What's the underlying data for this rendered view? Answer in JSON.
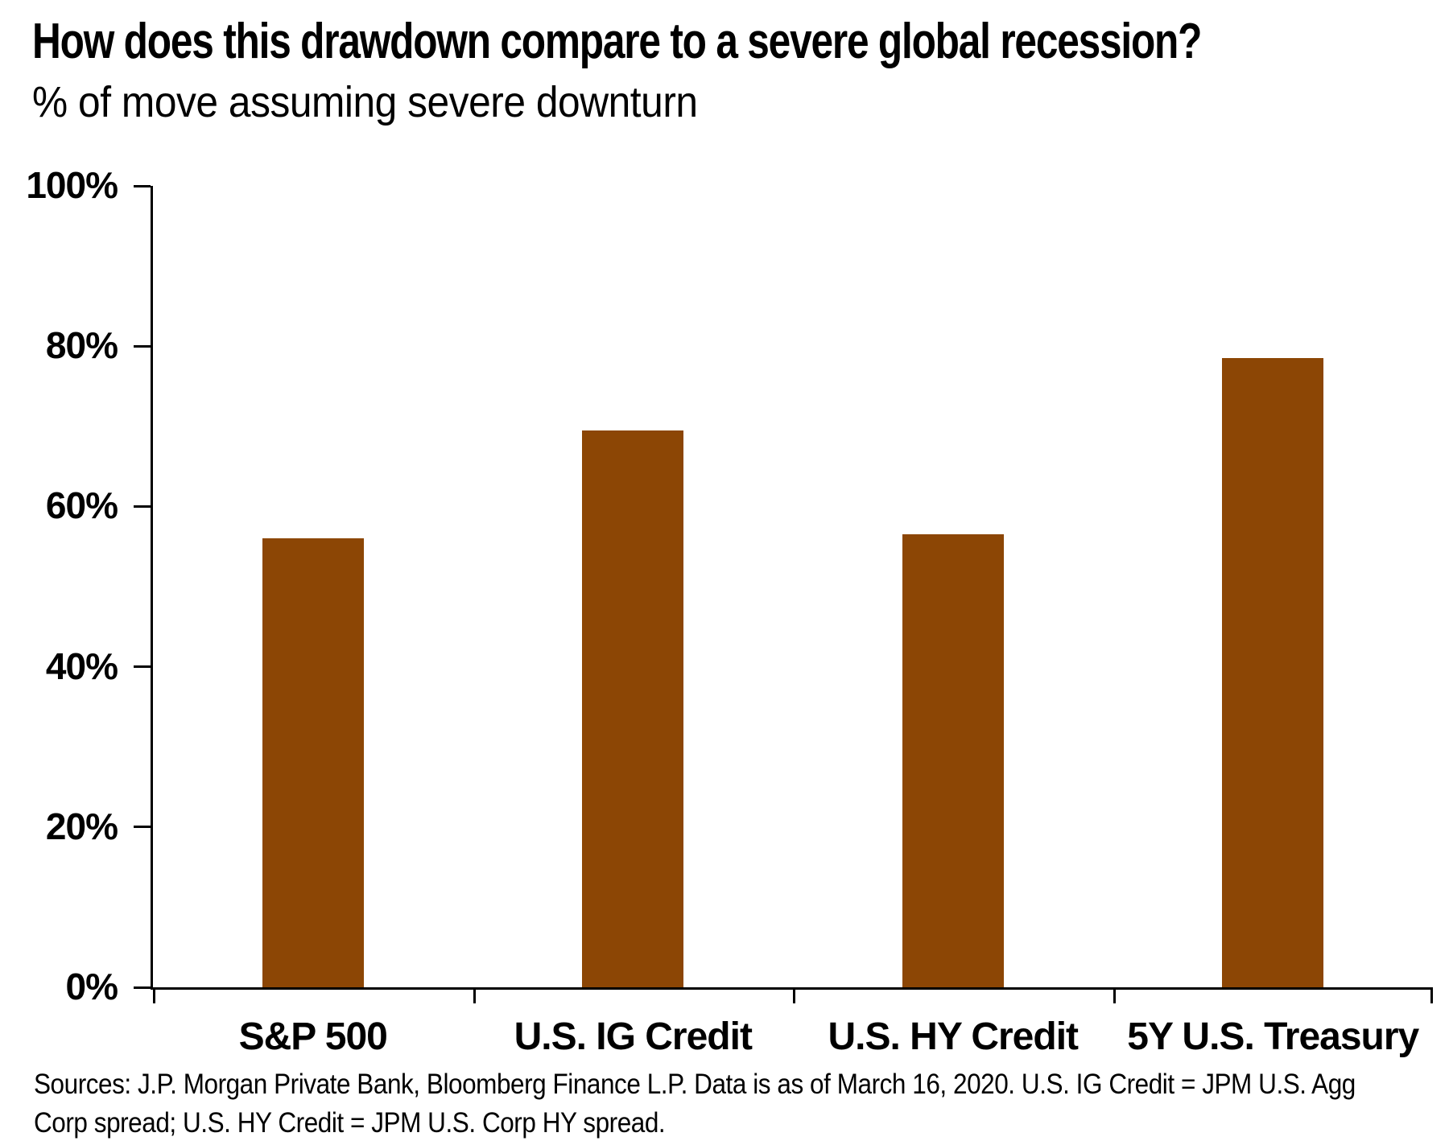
{
  "title": "How does this drawdown compare to a severe global recession?",
  "subtitle": "% of move assuming severe downturn",
  "source": {
    "line1": "Sources: J.P. Morgan Private Bank, Bloomberg Finance L.P. Data is as of March 16, 2020. U.S. IG Credit = JPM U.S. Agg",
    "line2": "Corp spread; U.S. HY Credit = JPM U.S. Corp HY spread."
  },
  "colors": {
    "bar": "#8C4605",
    "axis": "#000000",
    "text": "#000000",
    "background": "#ffffff"
  },
  "chart_data": {
    "type": "bar",
    "title": "How does this drawdown compare to a severe global recession?",
    "subtitle": "% of move assuming severe downturn",
    "categories": [
      "S&P 500",
      "U.S. IG Credit",
      "U.S. HY Credit",
      "5Y U.S. Treasury"
    ],
    "values": [
      56,
      69.5,
      56.5,
      78.5
    ],
    "xlabel": "",
    "ylabel": "% of move assuming severe downturn",
    "ylim": [
      0,
      100
    ],
    "yticks": [
      0,
      20,
      40,
      60,
      80,
      100
    ],
    "ytick_labels": [
      "0%",
      "20%",
      "40%",
      "60%",
      "80%",
      "100%"
    ],
    "grid": false,
    "legend": null,
    "bar_color": "#8C4605"
  }
}
